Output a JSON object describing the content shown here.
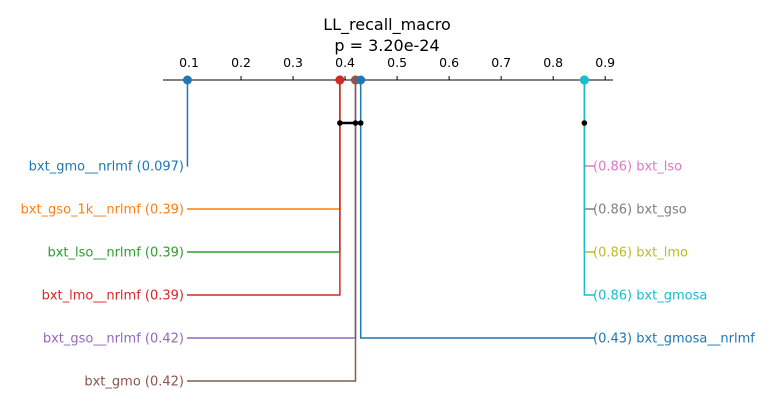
{
  "chart_data": {
    "type": "critical-difference",
    "title": "LL_recall_macro",
    "subtitle": "p = 3.20e-24",
    "axis": {
      "ticks": [
        0.1,
        0.2,
        0.3,
        0.4,
        0.5,
        0.6,
        0.7,
        0.8,
        0.9
      ],
      "tick_labels": [
        "0.1",
        "0.2",
        "0.3",
        "0.4",
        "0.5",
        "0.6",
        "0.7",
        "0.8",
        "0.9"
      ],
      "range": [
        0.05,
        0.915
      ]
    },
    "methods": [
      {
        "name": "bxt_gmo__nrlmf",
        "value": 0.097,
        "label": "bxt_gmo__nrlmf (0.097)",
        "side": "left",
        "color": "#1f77b4"
      },
      {
        "name": "bxt_gso_1k__nrlmf",
        "value": 0.39,
        "label": "bxt_gso_1k__nrlmf (0.39)",
        "side": "left",
        "color": "#ff7f0e"
      },
      {
        "name": "bxt_lso__nrlmf",
        "value": 0.39,
        "label": "bxt_lso__nrlmf (0.39)",
        "side": "left",
        "color": "#2ca02c"
      },
      {
        "name": "bxt_lmo__nrlmf",
        "value": 0.39,
        "label": "bxt_lmo__nrlmf (0.39)",
        "side": "left",
        "color": "#d62728"
      },
      {
        "name": "bxt_gso__nrlmf",
        "value": 0.42,
        "label": "bxt_gso__nrlmf (0.42)",
        "side": "left",
        "color": "#9467bd"
      },
      {
        "name": "bxt_gmo",
        "value": 0.42,
        "label": "bxt_gmo (0.42)",
        "side": "left",
        "color": "#8c564b"
      },
      {
        "name": "bxt_lso",
        "value": 0.86,
        "label": "(0.86) bxt_lso",
        "side": "right",
        "color": "#e377c2"
      },
      {
        "name": "bxt_gso",
        "value": 0.86,
        "label": "(0.86) bxt_gso",
        "side": "right",
        "color": "#7f7f7f"
      },
      {
        "name": "bxt_lmo",
        "value": 0.86,
        "label": "(0.86) bxt_lmo",
        "side": "right",
        "color": "#bcbd22"
      },
      {
        "name": "bxt_gmosa",
        "value": 0.86,
        "label": "(0.86) bxt_gmosa",
        "side": "right",
        "color": "#17becf"
      },
      {
        "name": "bxt_gmosa__nrlmf",
        "value": 0.43,
        "label": "(0.43) bxt_gmosa__nrlmf",
        "side": "right",
        "color": "#1f77b4"
      }
    ],
    "cliques": [
      {
        "from": 0.39,
        "to": 0.43
      },
      {
        "from": 0.86,
        "to": 0.86
      }
    ]
  }
}
